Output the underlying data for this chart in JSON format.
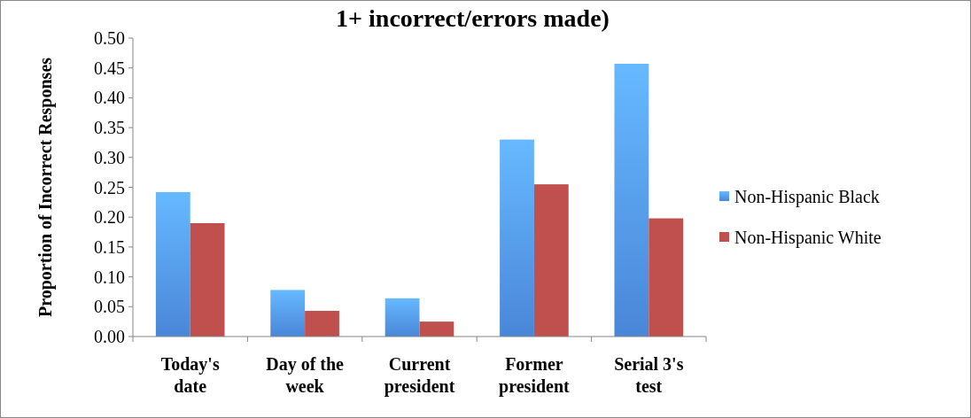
{
  "chart_data": {
    "type": "bar",
    "title": "1+ incorrect/errors made)",
    "ylabel": "Proportion of Incorrect Responses",
    "categories": [
      "Today's date",
      "Day of the week",
      "Current president",
      "Former president",
      "Serial 3's test"
    ],
    "series": [
      {
        "name": "Non-Hispanic Black",
        "color": "#4a86d8",
        "values": [
          0.242,
          0.078,
          0.064,
          0.33,
          0.457
        ]
      },
      {
        "name": "Non-Hispanic White",
        "color": "#c0504d",
        "values": [
          0.19,
          0.043,
          0.025,
          0.255,
          0.198
        ]
      }
    ],
    "ylim": [
      0,
      0.5
    ],
    "yticks": [
      {
        "value": 0,
        "label": "0.00"
      },
      {
        "value": 0.05,
        "label": "0.05"
      },
      {
        "value": 0.1,
        "label": "0.10"
      },
      {
        "value": 0.15,
        "label": "0.15"
      },
      {
        "value": 0.2,
        "label": "0.20"
      },
      {
        "value": 0.25,
        "label": "0.25"
      },
      {
        "value": 0.3,
        "label": "0.30"
      },
      {
        "value": 0.35,
        "label": "0.35"
      },
      {
        "value": 0.4,
        "label": "0.40"
      },
      {
        "value": 0.45,
        "label": "0.45"
      },
      {
        "value": 0.5,
        "label": "0.50"
      }
    ],
    "grid": false,
    "legend": "right"
  }
}
